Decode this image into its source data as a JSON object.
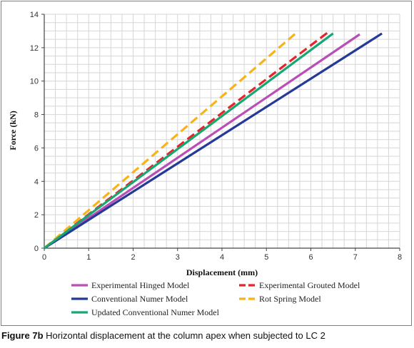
{
  "caption": {
    "label": "Figure 7b",
    "text": "Horizontal displacement at the column apex when subjected to LC 2"
  },
  "chart_data": {
    "type": "line",
    "title": "",
    "xlabel": "Displacement (mm)",
    "ylabel": "Force (kN)",
    "xlim": [
      0,
      8
    ],
    "ylim": [
      0,
      14
    ],
    "xticks": [
      0,
      1,
      2,
      3,
      4,
      5,
      6,
      7,
      8
    ],
    "yticks": [
      0,
      2,
      4,
      6,
      8,
      10,
      12,
      14
    ],
    "grid": true,
    "legend_position": "bottom",
    "series": [
      {
        "name": "Experimental Hinged Model",
        "color": "#b94fb6",
        "dash": "solid",
        "x": [
          0,
          7.1
        ],
        "y": [
          0,
          12.8
        ]
      },
      {
        "name": "Experimental Grouted Model",
        "color": "#e8232a",
        "dash": "dashed",
        "x": [
          0,
          6.4
        ],
        "y": [
          0,
          12.95
        ]
      },
      {
        "name": "Conventional Numer Model",
        "color": "#243a96",
        "dash": "solid",
        "x": [
          0,
          7.6
        ],
        "y": [
          0,
          12.85
        ]
      },
      {
        "name": "Rot Spring Model",
        "color": "#f7b418",
        "dash": "dashed",
        "x": [
          0,
          5.7
        ],
        "y": [
          0,
          12.95
        ]
      },
      {
        "name": "Updated Conventional Numer Model",
        "color": "#18a773",
        "dash": "solid",
        "x": [
          0,
          6.5
        ],
        "y": [
          0,
          12.85
        ]
      }
    ]
  }
}
